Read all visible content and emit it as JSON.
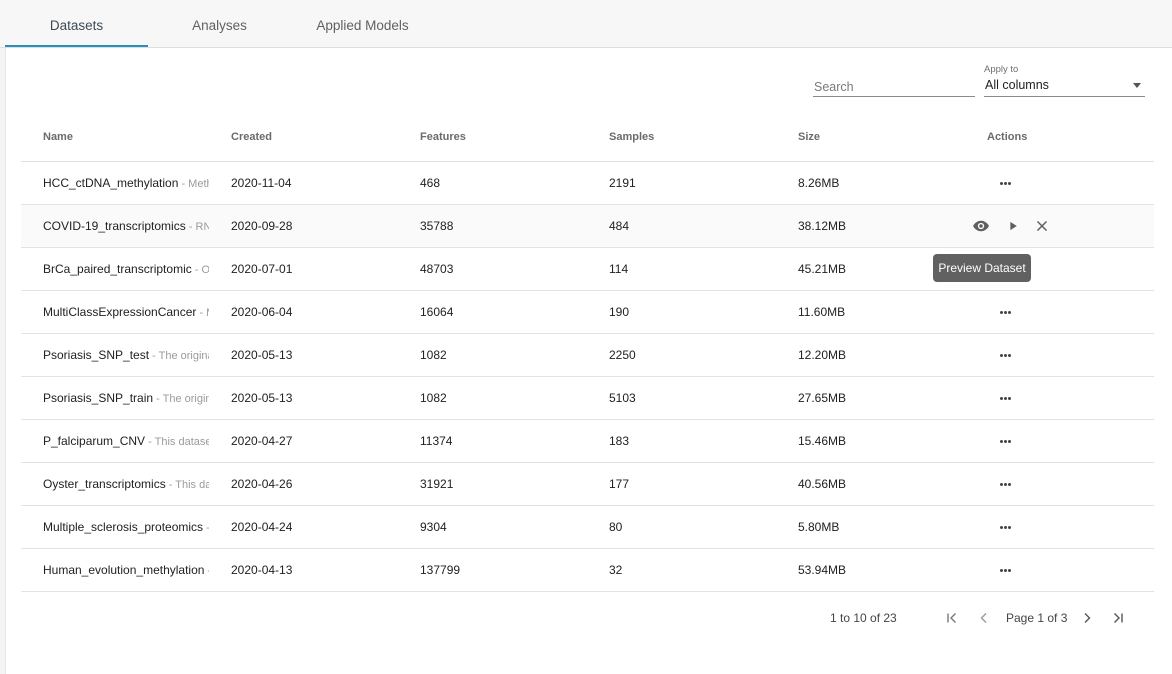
{
  "tabs": [
    {
      "label": "Datasets"
    },
    {
      "label": "Analyses"
    },
    {
      "label": "Applied Models"
    }
  ],
  "search": {
    "placeholder": "Search",
    "value": ""
  },
  "apply_to": {
    "label": "Apply to",
    "value": "All columns"
  },
  "table": {
    "headers": {
      "name": "Name",
      "created": "Created",
      "features": "Features",
      "samples": "Samples",
      "size": "Size",
      "actions": "Actions"
    },
    "rows": [
      {
        "name": "HCC_ctDNA_methylation",
        "desc": " - Methy",
        "created": "2020-11-04",
        "features": "468",
        "samples": "2191",
        "size": "8.26MB"
      },
      {
        "name": "COVID-19_transcriptomics",
        "desc": " - RNA",
        "created": "2020-09-28",
        "features": "35788",
        "samples": "484",
        "size": "38.12MB"
      },
      {
        "name": "BrCa_paired_transcriptomic",
        "desc": " - Ori",
        "created": "2020-07-01",
        "features": "48703",
        "samples": "114",
        "size": "45.21MB"
      },
      {
        "name": "MultiClassExpressionCancer",
        "desc": " - M",
        "created": "2020-06-04",
        "features": "16064",
        "samples": "190",
        "size": "11.60MB"
      },
      {
        "name": "Psoriasis_SNP_test",
        "desc": " - The original",
        "created": "2020-05-13",
        "features": "1082",
        "samples": "2250",
        "size": "12.20MB"
      },
      {
        "name": "Psoriasis_SNP_train",
        "desc": " - The origina",
        "created": "2020-05-13",
        "features": "1082",
        "samples": "5103",
        "size": "27.65MB"
      },
      {
        "name": "P_falciparum_CNV",
        "desc": " - This dataset",
        "created": "2020-04-27",
        "features": "11374",
        "samples": "183",
        "size": "15.46MB"
      },
      {
        "name": "Oyster_transcriptomics",
        "desc": " - This dat",
        "created": "2020-04-26",
        "features": "31921",
        "samples": "177",
        "size": "40.56MB"
      },
      {
        "name": "Multiple_sclerosis_proteomics",
        "desc": " - T",
        "created": "2020-04-24",
        "features": "9304",
        "samples": "80",
        "size": "5.80MB"
      },
      {
        "name": "Human_evolution_methylation",
        "desc": " - T",
        "created": "2020-04-13",
        "features": "137799",
        "samples": "32",
        "size": "53.94MB"
      }
    ]
  },
  "tooltip": {
    "text": "Preview Dataset"
  },
  "pagination": {
    "summary": "1 to 10 of 23",
    "page_label": "Page 1 of 3"
  },
  "icons": {
    "row_menu": "more-horizontal-icon",
    "preview": "eye-icon",
    "run": "play-icon",
    "delete": "close-icon",
    "first": "first-page-icon",
    "prev": "prev-page-icon",
    "next": "next-page-icon",
    "last": "last-page-icon"
  },
  "colors": {
    "accent": "#2a8fbd",
    "tooltip_bg": "#616161"
  }
}
